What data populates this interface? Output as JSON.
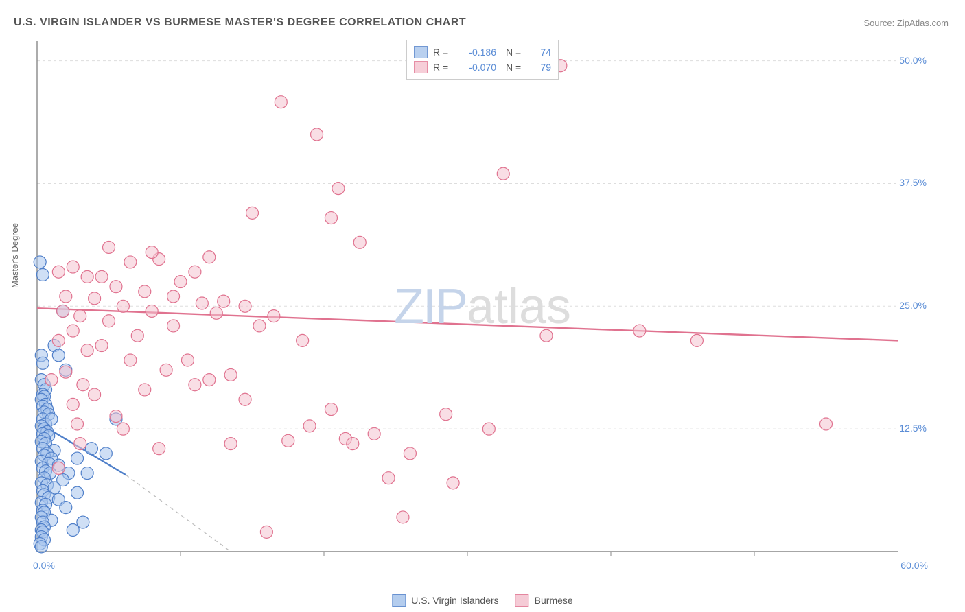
{
  "title": "U.S. VIRGIN ISLANDER VS BURMESE MASTER'S DEGREE CORRELATION CHART",
  "source": "Source: ZipAtlas.com",
  "y_label": "Master's Degree",
  "watermark": {
    "zip": "ZIP",
    "atlas": "atlas"
  },
  "chart": {
    "type": "scatter",
    "xlim": [
      0,
      60
    ],
    "ylim": [
      0,
      52
    ],
    "x_ticks": [
      {
        "v": 0,
        "label": "0.0%"
      },
      {
        "v": 60,
        "label": "60.0%"
      }
    ],
    "y_ticks": [
      {
        "v": 12.5,
        "label": "12.5%"
      },
      {
        "v": 25.0,
        "label": "25.0%"
      },
      {
        "v": 37.5,
        "label": "37.5%"
      },
      {
        "v": 50.0,
        "label": "50.0%"
      }
    ],
    "x_minor_ticks": [
      10,
      20,
      30,
      40,
      50
    ],
    "grid_color": "#dddddd",
    "grid_dash": "4,4",
    "axis_color": "#888888",
    "background_color": "#ffffff",
    "marker_radius": 9,
    "marker_stroke_width": 1.2,
    "trend_line_width": 2.4,
    "dashed_extend_color": "#bbbbbb",
    "series": [
      {
        "id": "usvi",
        "name": "U.S. Virgin Islanders",
        "fill": "#a8c5ec",
        "stroke": "#4f7fc9",
        "fill_opacity": 0.55,
        "R": "-0.186",
        "N": "74",
        "trend": {
          "x1": 0,
          "y1": 13.2,
          "x2": 6.2,
          "y2": 7.8,
          "extend_x2": 13.5,
          "extend_y2": 0
        },
        "points": [
          [
            0.2,
            29.5
          ],
          [
            0.4,
            28.2
          ],
          [
            0.3,
            20.0
          ],
          [
            0.4,
            19.2
          ],
          [
            0.3,
            17.5
          ],
          [
            0.5,
            17.0
          ],
          [
            0.6,
            16.5
          ],
          [
            0.4,
            16.0
          ],
          [
            0.5,
            15.8
          ],
          [
            0.3,
            15.5
          ],
          [
            0.6,
            15.0
          ],
          [
            0.4,
            14.8
          ],
          [
            0.7,
            14.5
          ],
          [
            0.5,
            14.2
          ],
          [
            0.8,
            14.0
          ],
          [
            0.4,
            13.5
          ],
          [
            0.6,
            13.0
          ],
          [
            0.3,
            12.8
          ],
          [
            0.5,
            12.5
          ],
          [
            0.7,
            12.2
          ],
          [
            0.4,
            12.0
          ],
          [
            0.8,
            11.8
          ],
          [
            0.5,
            11.5
          ],
          [
            0.3,
            11.2
          ],
          [
            0.6,
            11.0
          ],
          [
            0.4,
            10.5
          ],
          [
            1.2,
            10.3
          ],
          [
            0.7,
            10.0
          ],
          [
            0.5,
            9.8
          ],
          [
            1.0,
            9.5
          ],
          [
            2.8,
            9.5
          ],
          [
            0.3,
            9.2
          ],
          [
            0.8,
            9.0
          ],
          [
            1.5,
            8.8
          ],
          [
            0.4,
            8.5
          ],
          [
            0.6,
            8.2
          ],
          [
            2.2,
            8.0
          ],
          [
            0.9,
            8.0
          ],
          [
            3.5,
            8.0
          ],
          [
            0.5,
            7.5
          ],
          [
            1.8,
            7.3
          ],
          [
            0.3,
            7.0
          ],
          [
            0.7,
            6.8
          ],
          [
            1.2,
            6.5
          ],
          [
            0.4,
            6.2
          ],
          [
            2.8,
            6.0
          ],
          [
            0.5,
            5.8
          ],
          [
            0.8,
            5.5
          ],
          [
            1.5,
            5.3
          ],
          [
            0.3,
            5.0
          ],
          [
            0.6,
            4.8
          ],
          [
            2.0,
            4.5
          ],
          [
            0.4,
            4.2
          ],
          [
            0.5,
            4.0
          ],
          [
            0.3,
            3.5
          ],
          [
            1.0,
            3.2
          ],
          [
            0.4,
            3.0
          ],
          [
            3.2,
            3.0
          ],
          [
            0.5,
            2.5
          ],
          [
            0.3,
            2.2
          ],
          [
            2.5,
            2.2
          ],
          [
            0.4,
            2.0
          ],
          [
            0.3,
            1.5
          ],
          [
            0.5,
            1.2
          ],
          [
            0.2,
            0.8
          ],
          [
            0.3,
            0.5
          ],
          [
            5.5,
            13.5
          ],
          [
            1.8,
            24.5
          ],
          [
            1.2,
            21.0
          ],
          [
            1.5,
            20.0
          ],
          [
            2.0,
            18.5
          ],
          [
            1.0,
            13.5
          ],
          [
            4.8,
            10.0
          ],
          [
            3.8,
            10.5
          ]
        ]
      },
      {
        "id": "burmese",
        "name": "Burmese",
        "fill": "#f4c2cf",
        "stroke": "#e0728f",
        "fill_opacity": 0.55,
        "R": "-0.070",
        "N": "79",
        "trend": {
          "x1": 0,
          "y1": 24.8,
          "x2": 60,
          "y2": 21.5
        },
        "points": [
          [
            36.5,
            49.5
          ],
          [
            17.0,
            45.8
          ],
          [
            19.5,
            42.5
          ],
          [
            32.5,
            38.5
          ],
          [
            21.0,
            37.0
          ],
          [
            15.0,
            34.5
          ],
          [
            20.5,
            34.0
          ],
          [
            22.5,
            31.5
          ],
          [
            12.0,
            30.0
          ],
          [
            8.5,
            29.8
          ],
          [
            6.5,
            29.5
          ],
          [
            2.5,
            29.0
          ],
          [
            1.5,
            28.5
          ],
          [
            3.5,
            28.0
          ],
          [
            10.0,
            27.5
          ],
          [
            5.5,
            27.0
          ],
          [
            7.5,
            26.5
          ],
          [
            2.0,
            26.0
          ],
          [
            4.0,
            25.8
          ],
          [
            13.0,
            25.5
          ],
          [
            11.5,
            25.3
          ],
          [
            6.0,
            25.0
          ],
          [
            14.5,
            25.0
          ],
          [
            8.0,
            24.5
          ],
          [
            12.5,
            24.3
          ],
          [
            3.0,
            24.0
          ],
          [
            16.5,
            24.0
          ],
          [
            5.0,
            23.5
          ],
          [
            9.5,
            23.0
          ],
          [
            2.5,
            22.5
          ],
          [
            42.0,
            22.5
          ],
          [
            7.0,
            22.0
          ],
          [
            1.5,
            21.5
          ],
          [
            4.5,
            21.0
          ],
          [
            35.5,
            22.0
          ],
          [
            3.5,
            20.5
          ],
          [
            46.0,
            21.5
          ],
          [
            6.5,
            19.5
          ],
          [
            9.0,
            18.5
          ],
          [
            2.0,
            18.3
          ],
          [
            13.5,
            18.0
          ],
          [
            1.0,
            17.5
          ],
          [
            12.0,
            17.5
          ],
          [
            11.0,
            17.0
          ],
          [
            7.5,
            16.5
          ],
          [
            4.0,
            16.0
          ],
          [
            14.5,
            15.5
          ],
          [
            2.5,
            15.0
          ],
          [
            20.5,
            14.5
          ],
          [
            28.5,
            14.0
          ],
          [
            5.5,
            13.8
          ],
          [
            55.0,
            13.0
          ],
          [
            31.5,
            12.5
          ],
          [
            23.5,
            12.0
          ],
          [
            21.5,
            11.5
          ],
          [
            3.0,
            11.0
          ],
          [
            8.5,
            10.5
          ],
          [
            17.5,
            11.3
          ],
          [
            26.0,
            10.0
          ],
          [
            1.5,
            8.5
          ],
          [
            24.5,
            7.5
          ],
          [
            25.5,
            3.5
          ],
          [
            29.0,
            7.0
          ],
          [
            16.0,
            2.0
          ],
          [
            22.0,
            11.0
          ],
          [
            19.0,
            12.8
          ],
          [
            18.5,
            21.5
          ],
          [
            15.5,
            23.0
          ],
          [
            10.5,
            19.5
          ],
          [
            11.0,
            28.5
          ],
          [
            8.0,
            30.5
          ],
          [
            13.5,
            11.0
          ],
          [
            6.0,
            12.5
          ],
          [
            9.5,
            26.0
          ],
          [
            4.5,
            28.0
          ],
          [
            2.8,
            13.0
          ],
          [
            1.8,
            24.5
          ],
          [
            3.2,
            17.0
          ],
          [
            5.0,
            31.0
          ]
        ]
      }
    ]
  },
  "legend_bottom": [
    {
      "series": "usvi",
      "label": "U.S. Virgin Islanders"
    },
    {
      "series": "burmese",
      "label": "Burmese"
    }
  ]
}
